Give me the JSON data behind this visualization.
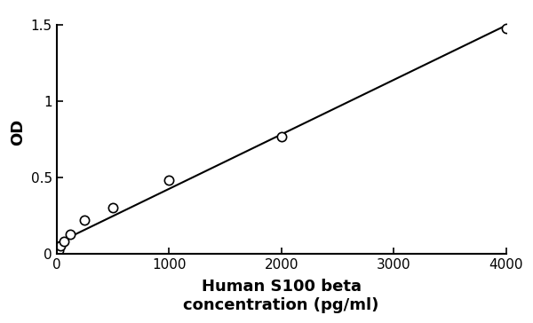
{
  "x_data": [
    0,
    15.6,
    31.25,
    62.5,
    125,
    250,
    500,
    1000,
    2000,
    4000
  ],
  "y_data": [
    0.0,
    0.02,
    0.05,
    0.08,
    0.13,
    0.22,
    0.3,
    0.48,
    0.77,
    1.48
  ],
  "scatter_color": "white",
  "scatter_edgecolor": "#000000",
  "line_color": "#000000",
  "xlabel_line1": "Human S100 beta",
  "xlabel_line2": "concentration (pg/ml)",
  "ylabel": "OD",
  "xlim": [
    0,
    4000
  ],
  "ylim": [
    0,
    1.6
  ],
  "xticks": [
    0,
    1000,
    2000,
    3000,
    4000
  ],
  "yticks": [
    0,
    0.5,
    1.0,
    1.5
  ],
  "ytick_labels": [
    "0",
    "0.5",
    "1",
    "1.5"
  ],
  "scatter_size": 55,
  "scatter_linewidth": 1.2,
  "line_linewidth": 1.5,
  "xlabel_fontsize": 13,
  "ylabel_fontsize": 13,
  "tick_fontsize": 11,
  "background_color": "#ffffff",
  "spine_linewidth": 1.5
}
